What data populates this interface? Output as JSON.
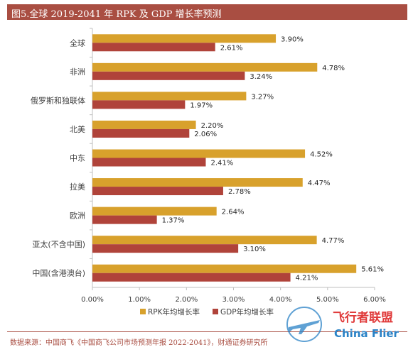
{
  "title": "图5.全球 2019-2041 年 RPK 及 GDP 增长率预测",
  "source": "数据来源：中国商飞《中国商飞公司市场预测年报 2022-2041》，财通证券研究所",
  "watermark": {
    "cn": "飞行者联盟",
    "en": "China Flier"
  },
  "colors": {
    "rpk": "#d8a12c",
    "gdp": "#b0433a",
    "title_bar": "#a94e42",
    "axis": "#bfbfbf",
    "text": "#404040"
  },
  "chart_data": {
    "type": "bar",
    "orientation": "horizontal",
    "categories": [
      "全球",
      "非洲",
      "俄罗斯和独联体",
      "北美",
      "中东",
      "拉美",
      "欧洲",
      "亚太(不含中国)",
      "中国(含港澳台)"
    ],
    "series": [
      {
        "name": "RPK年均增长率",
        "values": [
          3.9,
          4.78,
          3.27,
          2.2,
          4.52,
          4.47,
          2.64,
          4.77,
          5.61
        ],
        "labels": [
          "3.90%",
          "4.78%",
          "3.27%",
          "2.20%",
          "4.52%",
          "4.47%",
          "2.64%",
          "4.77%",
          "5.61%"
        ]
      },
      {
        "name": "GDP年均增长率",
        "values": [
          2.61,
          3.24,
          1.97,
          2.06,
          2.41,
          2.78,
          1.37,
          3.1,
          4.21
        ],
        "labels": [
          "2.61%",
          "3.24%",
          "1.97%",
          "2.06%",
          "2.41%",
          "2.78%",
          "1.37%",
          "3.10%",
          "4.21%"
        ]
      }
    ],
    "xlim": [
      0,
      6
    ],
    "x_ticks": [
      "0.00%",
      "1.00%",
      "2.00%",
      "3.00%",
      "4.00%",
      "5.00%",
      "6.00%"
    ],
    "legend_position": "bottom",
    "grid": false,
    "xlabel": "",
    "ylabel": ""
  }
}
